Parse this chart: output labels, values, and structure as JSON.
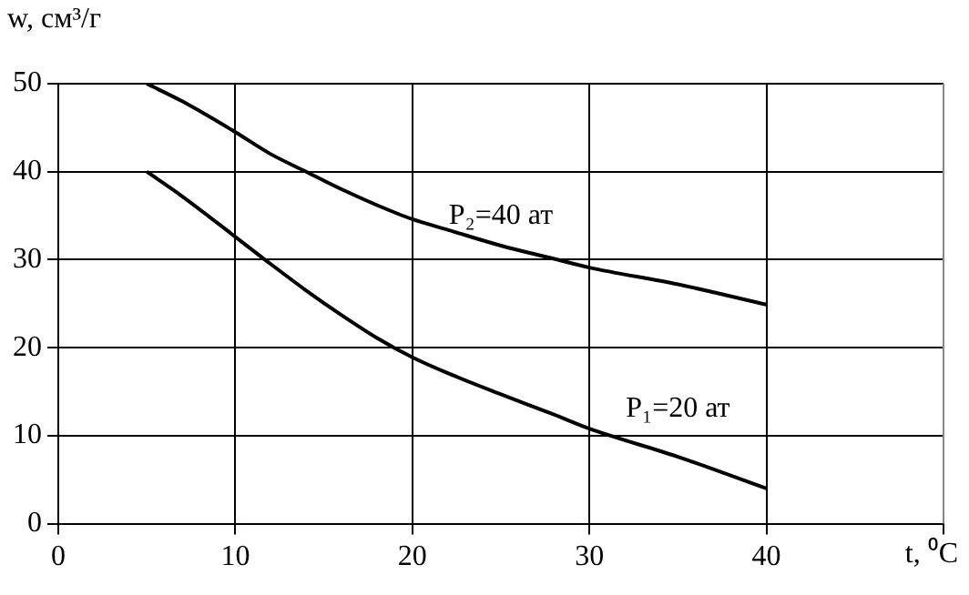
{
  "chart_data": {
    "type": "line",
    "xlabel": "t, ⁰C",
    "ylabel": "w, см³/г",
    "series": [
      {
        "name": "P₂=40 ат",
        "color": "#000000",
        "x": [
          5,
          7,
          10,
          12,
          14,
          16,
          18,
          20,
          22,
          25,
          28,
          30,
          35,
          40
        ],
        "values": [
          50,
          48,
          44.5,
          42,
          40,
          38,
          36.2,
          34.6,
          33.4,
          31.6,
          30.1,
          29.1,
          27.2,
          24.9
        ]
      },
      {
        "name": "P₁=20 ат",
        "color": "#000000",
        "x": [
          5,
          7,
          10,
          12,
          14,
          16,
          18,
          20,
          22,
          25,
          28,
          30,
          35,
          40
        ],
        "values": [
          40,
          37.2,
          32.6,
          29.5,
          26.5,
          23.7,
          21.1,
          18.9,
          17.1,
          14.7,
          12.4,
          10.8,
          7.6,
          4
        ]
      }
    ],
    "xlim": [
      0,
      50
    ],
    "xticks": [
      0,
      10,
      20,
      30,
      40,
      {
        "value": 50,
        "label": null
      }
    ],
    "ylim": [
      0,
      50
    ],
    "yticks": [
      0,
      10,
      20,
      30,
      40,
      50
    ],
    "grid": true,
    "legend": false,
    "marker": "none",
    "line_style": "solid"
  }
}
